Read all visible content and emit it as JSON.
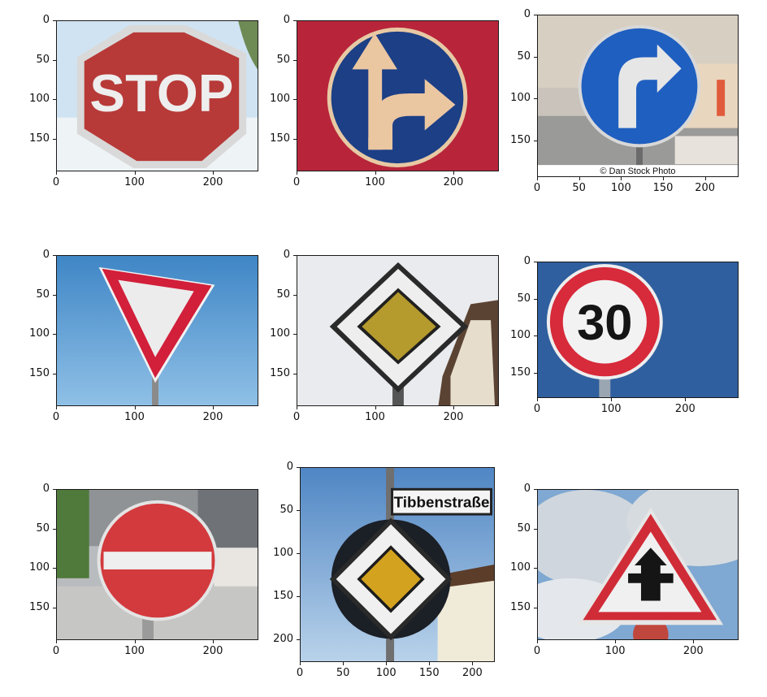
{
  "panels": [
    {
      "name": "stop-sign-panel",
      "sign_text": "STOP",
      "subject": "stop sign",
      "yticks": [
        "0",
        "50",
        "100",
        "150"
      ],
      "xticks": [
        "0",
        "100",
        "200"
      ]
    },
    {
      "name": "straight-or-right-panel",
      "subject": "mandatory straight or right turn sign",
      "yticks": [
        "0",
        "50",
        "100",
        "150"
      ],
      "xticks": [
        "0",
        "100",
        "200"
      ]
    },
    {
      "name": "turn-right-panel",
      "watermark": "© Dan Stock Photo",
      "subject": "turn right ahead sign",
      "yticks": [
        "0",
        "50",
        "100",
        "150"
      ],
      "xticks": [
        "0",
        "50",
        "100",
        "150",
        "200"
      ]
    },
    {
      "name": "yield-sign-panel",
      "subject": "yield sign",
      "yticks": [
        "0",
        "50",
        "100",
        "150"
      ],
      "xticks": [
        "0",
        "100",
        "200"
      ]
    },
    {
      "name": "priority-road-panel",
      "subject": "priority road sign",
      "yticks": [
        "0",
        "50",
        "100",
        "150"
      ],
      "xticks": [
        "0",
        "100",
        "200"
      ]
    },
    {
      "name": "speed-limit-panel",
      "sign_text": "30",
      "subject": "speed limit 30 sign",
      "yticks": [
        "0",
        "50",
        "100",
        "150"
      ],
      "xticks": [
        "0",
        "100",
        "200"
      ]
    },
    {
      "name": "no-entry-panel",
      "subject": "no entry sign",
      "yticks": [
        "0",
        "50",
        "100",
        "150"
      ],
      "xticks": [
        "0",
        "100",
        "200"
      ]
    },
    {
      "name": "priority-road-street-panel",
      "street_sign": "Tibbenstraße",
      "subject": "priority road sign with street name plate",
      "yticks": [
        "0",
        "50",
        "100",
        "150",
        "200"
      ],
      "xticks": [
        "0",
        "50",
        "100",
        "150",
        "200"
      ]
    },
    {
      "name": "right-of-way-panel",
      "subject": "right-of-way at next intersection sign",
      "yticks": [
        "0",
        "50",
        "100",
        "150"
      ],
      "xticks": [
        "0",
        "100",
        "200"
      ]
    }
  ],
  "colors": {
    "sign_red": "#c8202a",
    "sign_blue": "#1c4fa8",
    "priority_yellow": "#d8a824",
    "axis": "#1a1a1a"
  }
}
